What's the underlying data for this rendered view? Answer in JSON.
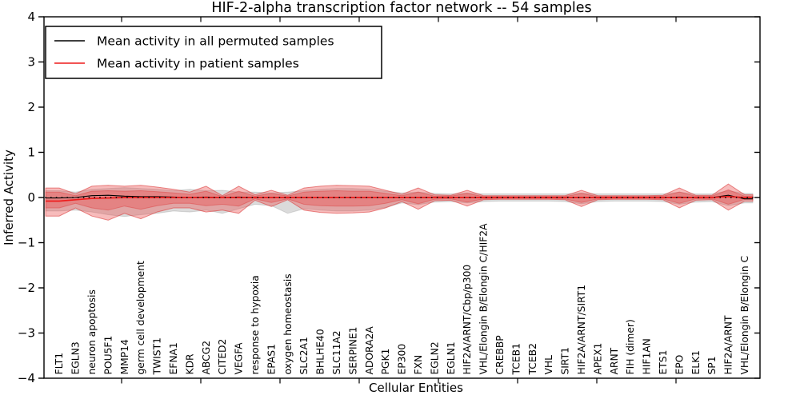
{
  "chart_data": {
    "type": "line",
    "title": "HIF-2-alpha transcription factor network -- 54 samples",
    "xlabel": "Cellular Entities",
    "ylabel": "Inferred Activity",
    "ylim": [
      -4,
      4
    ],
    "yticks": [
      4,
      3,
      2,
      1,
      0,
      -1,
      -2,
      -3,
      -4
    ],
    "grid": false,
    "legend_position": "upper left",
    "reference_line": {
      "y": 0,
      "style": "dotted",
      "color": "#000000"
    },
    "categories": [
      "FLT1",
      "EGLN3",
      "neuron apoptosis",
      "POU5F1",
      "MMP14",
      "germ cell development",
      "TWIST1",
      "EFNA1",
      "KDR",
      "ABCG2",
      "CITED2",
      "VEGFA",
      "response to hypoxia",
      "EPAS1",
      "oxygen homeostasis",
      "SLC2A1",
      "BHLHE40",
      "SLC11A2",
      "SERPINE1",
      "ADORA2A",
      "PGK1",
      "EP300",
      "FXN",
      "EGLN2",
      "EGLN1",
      "HIF2A/ARNT/Cbp/p300",
      "VHL/Elongin B/Elongin C/HIF2A",
      "CREBBP",
      "TCEB1",
      "TCEB2",
      "VHL",
      "SIRT1",
      "HIF2A/ARNT/SIRT1",
      "APEX1",
      "ARNT",
      "FIH (dimer)",
      "HIF1AN",
      "ETS1",
      "EPO",
      "ELK1",
      "SP1",
      "HIF2A/ARNT",
      "VHL/Elongin B/Elongin C"
    ],
    "series": [
      {
        "name": "Mean activity in all permuted samples",
        "color": "#000000",
        "width": 1.1,
        "values": [
          -0.01,
          0.0,
          0.04,
          0.05,
          0.03,
          0.02,
          0.02,
          0.01,
          0.0,
          0.01,
          0.0,
          0.01,
          0.0,
          0.0,
          0.0,
          0.0,
          0.0,
          0.0,
          0.0,
          0.0,
          0.0,
          0.0,
          0.0,
          0.0,
          0.0,
          0.0,
          0.0,
          0.0,
          0.0,
          0.0,
          0.0,
          0.0,
          0.0,
          0.0,
          0.0,
          0.0,
          0.0,
          0.0,
          0.01,
          0.0,
          0.0,
          0.05,
          -0.03
        ]
      },
      {
        "name": "Mean activity in patient samples",
        "color": "#ed1c1c",
        "width": 1.7,
        "values": [
          -0.08,
          -0.05,
          -0.02,
          -0.01,
          0.0,
          0.0,
          0.0,
          0.0,
          0.0,
          0.0,
          0.0,
          0.0,
          0.0,
          0.0,
          0.0,
          0.0,
          0.0,
          0.0,
          0.0,
          0.0,
          0.0,
          0.0,
          0.0,
          0.0,
          0.0,
          0.0,
          0.0,
          0.0,
          0.0,
          0.0,
          0.0,
          0.0,
          0.0,
          0.0,
          0.0,
          0.0,
          0.0,
          0.0,
          0.0,
          0.0,
          0.0,
          0.02,
          0.0
        ]
      }
    ],
    "bands": [
      {
        "name": "permuted samples range",
        "color": "rgba(145,145,145,0.33)",
        "stroke": "rgba(120,120,120,0.25)",
        "upper": [
          0.15,
          0.12,
          0.18,
          0.2,
          0.22,
          0.2,
          0.18,
          0.15,
          0.18,
          0.15,
          0.16,
          0.12,
          0.12,
          0.1,
          0.12,
          0.15,
          0.18,
          0.2,
          0.2,
          0.18,
          0.14,
          0.1,
          0.12,
          0.09,
          0.08,
          0.1,
          0.08,
          0.08,
          0.08,
          0.08,
          0.08,
          0.08,
          0.1,
          0.08,
          0.08,
          0.08,
          0.08,
          0.08,
          0.12,
          0.08,
          0.08,
          0.15,
          0.09
        ],
        "lower": [
          -0.3,
          -0.28,
          -0.32,
          -0.38,
          -0.42,
          -0.38,
          -0.35,
          -0.3,
          -0.32,
          -0.28,
          -0.35,
          -0.25,
          -0.15,
          -0.18,
          -0.35,
          -0.25,
          -0.28,
          -0.3,
          -0.3,
          -0.28,
          -0.22,
          -0.12,
          -0.16,
          -0.1,
          -0.09,
          -0.12,
          -0.09,
          -0.08,
          -0.08,
          -0.08,
          -0.08,
          -0.09,
          -0.14,
          -0.09,
          -0.08,
          -0.08,
          -0.08,
          -0.09,
          -0.15,
          -0.1,
          -0.09,
          -0.18,
          -0.12
        ]
      },
      {
        "name": "patient samples range (outer)",
        "color": "rgba(233,75,75,0.38)",
        "stroke": "rgba(220,60,60,0.60)",
        "upper": [
          0.21,
          0.08,
          0.25,
          0.27,
          0.25,
          0.27,
          0.23,
          0.18,
          0.12,
          0.25,
          0.04,
          0.25,
          0.06,
          0.16,
          0.05,
          0.21,
          0.25,
          0.27,
          0.26,
          0.25,
          0.16,
          0.07,
          0.21,
          0.06,
          0.05,
          0.16,
          0.04,
          0.04,
          0.04,
          0.04,
          0.04,
          0.04,
          0.16,
          0.04,
          0.04,
          0.04,
          0.04,
          0.05,
          0.21,
          0.05,
          0.05,
          0.3,
          0.06
        ],
        "lower": [
          -0.41,
          -0.23,
          -0.41,
          -0.5,
          -0.35,
          -0.47,
          -0.32,
          -0.23,
          -0.23,
          -0.32,
          -0.28,
          -0.35,
          -0.06,
          -0.2,
          -0.05,
          -0.28,
          -0.33,
          -0.35,
          -0.34,
          -0.32,
          -0.23,
          -0.09,
          -0.26,
          -0.07,
          -0.06,
          -0.19,
          -0.05,
          -0.04,
          -0.04,
          -0.04,
          -0.04,
          -0.05,
          -0.2,
          -0.05,
          -0.04,
          -0.04,
          -0.04,
          -0.05,
          -0.23,
          -0.06,
          -0.05,
          -0.28,
          -0.08
        ]
      },
      {
        "name": "patient samples range (inner)",
        "color": "rgba(233,75,75,0.38)",
        "stroke": "rgba(220,60,60,0.45)",
        "upper": [
          0.12,
          0.04,
          0.14,
          0.15,
          0.14,
          0.15,
          0.13,
          0.1,
          0.07,
          0.14,
          0.02,
          0.14,
          0.03,
          0.09,
          0.03,
          0.12,
          0.14,
          0.15,
          0.14,
          0.14,
          0.09,
          0.04,
          0.12,
          0.03,
          0.03,
          0.09,
          0.02,
          0.02,
          0.02,
          0.02,
          0.02,
          0.02,
          0.09,
          0.02,
          0.02,
          0.02,
          0.02,
          0.03,
          0.12,
          0.03,
          0.03,
          0.17,
          0.03
        ],
        "lower": [
          -0.23,
          -0.13,
          -0.23,
          -0.28,
          -0.19,
          -0.26,
          -0.18,
          -0.13,
          -0.13,
          -0.18,
          -0.15,
          -0.19,
          -0.03,
          -0.11,
          -0.03,
          -0.15,
          -0.18,
          -0.19,
          -0.19,
          -0.18,
          -0.13,
          -0.05,
          -0.14,
          -0.04,
          -0.03,
          -0.1,
          -0.03,
          -0.02,
          -0.02,
          -0.02,
          -0.02,
          -0.03,
          -0.11,
          -0.03,
          -0.02,
          -0.02,
          -0.02,
          -0.03,
          -0.13,
          -0.03,
          -0.03,
          -0.15,
          -0.04
        ]
      }
    ]
  }
}
